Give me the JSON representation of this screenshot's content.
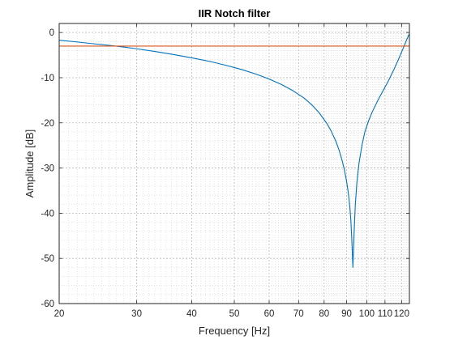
{
  "chart_data": {
    "type": "line",
    "title": "IIR Notch filter",
    "xlabel": "Frequency [Hz]",
    "ylabel": "Amplitude [dB]",
    "xscale": "log",
    "xlim": [
      20,
      125
    ],
    "ylim": [
      -60,
      2
    ],
    "xticks": [
      20,
      30,
      40,
      50,
      60,
      70,
      80,
      90,
      100,
      110,
      120
    ],
    "xtick_labels": [
      "20",
      "30",
      "40",
      "50",
      "60",
      "70",
      "80",
      "90",
      "100",
      "110",
      "120"
    ],
    "yticks": [
      0,
      -10,
      -20,
      -30,
      -40,
      -50,
      -60
    ],
    "ytick_labels": [
      "0",
      "-10",
      "-20",
      "-30",
      "-40",
      "-50",
      "-60"
    ],
    "grid": "major and minor",
    "series": [
      {
        "type": "line",
        "color": "#0072BD",
        "x": [
          20,
          22,
          24,
          26,
          28,
          30,
          33,
          36,
          40,
          44,
          48,
          52,
          56,
          60,
          64,
          68,
          72,
          75,
          78,
          81,
          83,
          85,
          86.5,
          88,
          89,
          90,
          90.8,
          91.5,
          92,
          92.4,
          92.7,
          93,
          93.3,
          93.7,
          94.2,
          95,
          96,
          97.5,
          99,
          101,
          103,
          106,
          109,
          112,
          115,
          118,
          121,
          123,
          124.5,
          125
        ],
        "y": [
          -1.7,
          -2.1,
          -2.5,
          -2.85,
          -3.2,
          -3.6,
          -4.2,
          -4.8,
          -5.6,
          -6.4,
          -7.3,
          -8.2,
          -9.2,
          -10.3,
          -11.5,
          -12.9,
          -14.5,
          -16.0,
          -17.8,
          -20.0,
          -21.8,
          -24.0,
          -26.0,
          -28.5,
          -30.5,
          -33.0,
          -35.5,
          -38.5,
          -41.5,
          -45.0,
          -48.5,
          -52.0,
          -48.0,
          -43.0,
          -38.0,
          -33.0,
          -29.0,
          -25.0,
          -22.0,
          -19.5,
          -17.5,
          -15.0,
          -12.8,
          -10.7,
          -8.4,
          -6.0,
          -3.5,
          -1.8,
          -0.6,
          -0.3
        ]
      },
      {
        "type": "line",
        "color": "#D95319",
        "x": [
          20,
          125
        ],
        "y": [
          -3,
          -3
        ]
      }
    ]
  }
}
